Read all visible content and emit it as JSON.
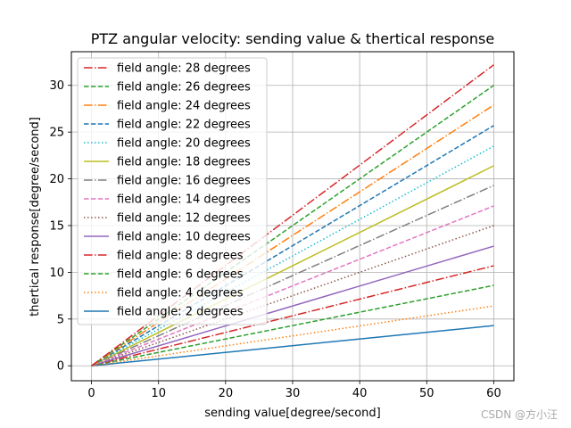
{
  "chart_data": {
    "type": "line",
    "title": "PTZ angular velocity: sending value & thertical response",
    "xlabel": "sending value[degree/second]",
    "ylabel": "thertical response[degree/second]",
    "xlim": [
      -3,
      63
    ],
    "ylim": [
      -1.6,
      33.6
    ],
    "xticks": [
      0,
      10,
      20,
      30,
      40,
      50,
      60
    ],
    "yticks": [
      0,
      5,
      10,
      15,
      20,
      25,
      30
    ],
    "grid": true,
    "legend_position": "upper-left",
    "x": [
      0,
      60
    ],
    "series": [
      {
        "name": "field angle: 28 degrees",
        "values": [
          0,
          32.2
        ],
        "color": "#d62728",
        "dash": "dashdot"
      },
      {
        "name": "field angle: 26 degrees",
        "values": [
          0,
          30.0
        ],
        "color": "#2ca02c",
        "dash": "dashed"
      },
      {
        "name": "field angle: 24 degrees",
        "values": [
          0,
          27.9
        ],
        "color": "#ff7f0e",
        "dash": "dashdot"
      },
      {
        "name": "field angle: 22 degrees",
        "values": [
          0,
          25.7
        ],
        "color": "#1f77b4",
        "dash": "dashed"
      },
      {
        "name": "field angle: 20 degrees",
        "values": [
          0,
          23.5
        ],
        "color": "#17becf",
        "dash": "dotted"
      },
      {
        "name": "field angle: 18 degrees",
        "values": [
          0,
          21.4
        ],
        "color": "#bcbd22",
        "dash": "solid"
      },
      {
        "name": "field angle: 16 degrees",
        "values": [
          0,
          19.3
        ],
        "color": "#7f7f7f",
        "dash": "dashdot"
      },
      {
        "name": "field angle: 14 degrees",
        "values": [
          0,
          17.1
        ],
        "color": "#e377c2",
        "dash": "dashed"
      },
      {
        "name": "field angle: 12 degrees",
        "values": [
          0,
          15.0
        ],
        "color": "#8c564b",
        "dash": "dotted"
      },
      {
        "name": "field angle: 10 degrees",
        "values": [
          0,
          12.8
        ],
        "color": "#9467bd",
        "dash": "solid"
      },
      {
        "name": "field angle: 8 degrees",
        "values": [
          0,
          10.7
        ],
        "color": "#d62728",
        "dash": "dashdot"
      },
      {
        "name": "field angle: 6 degrees",
        "values": [
          0,
          8.6
        ],
        "color": "#2ca02c",
        "dash": "dashed"
      },
      {
        "name": "field angle: 4 degrees",
        "values": [
          0,
          6.4
        ],
        "color": "#ff7f0e",
        "dash": "dotted"
      },
      {
        "name": "field angle: 2 degrees",
        "values": [
          0,
          4.3
        ],
        "color": "#1f77b4",
        "dash": "solid"
      }
    ]
  },
  "watermark": "CSDN @方小汪"
}
